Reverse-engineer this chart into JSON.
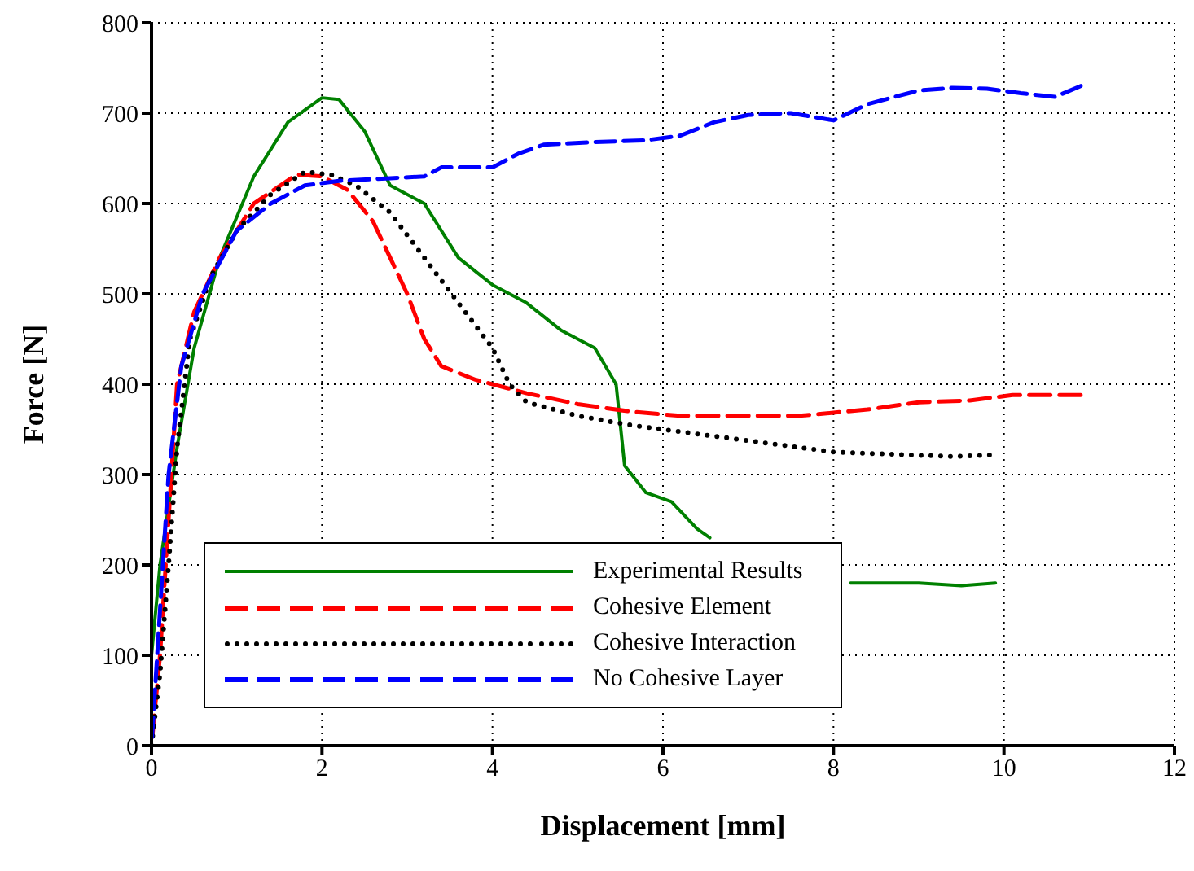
{
  "chart_data": {
    "type": "line",
    "xlabel": "Displacement [mm]",
    "ylabel": "Force [N]",
    "xlim": [
      0,
      12
    ],
    "xticks": [
      0,
      2,
      4,
      6,
      8,
      10,
      12
    ],
    "ylim": [
      0,
      800
    ],
    "yticks": [
      0,
      100,
      200,
      300,
      400,
      500,
      600,
      700,
      800
    ],
    "grid": true,
    "legend": "bottom left",
    "marker": "none",
    "series": [
      {
        "name": "Experimental Results",
        "color": "#008000",
        "line_style": "solid",
        "x": [
          0,
          0.1,
          0.3,
          0.5,
          0.8,
          1.2,
          1.6,
          2.0,
          2.2,
          2.5,
          2.8,
          3.2,
          3.6,
          4.0,
          4.4,
          4.8,
          5.2,
          5.45,
          5.55,
          5.8,
          6.1,
          6.4,
          6.55,
          7.3,
          8.2,
          8.5,
          9.0,
          9.5,
          9.9
        ],
        "values": [
          100,
          200,
          330,
          440,
          540,
          630,
          690,
          717,
          715,
          680,
          620,
          600,
          540,
          510,
          490,
          460,
          440,
          400,
          310,
          280,
          270,
          240,
          230,
          null,
          180,
          180,
          180,
          177,
          180
        ]
      },
      {
        "name": "Cohesive Element",
        "color": "#ff0000",
        "line_style": "dashed",
        "x": [
          0,
          0.1,
          0.2,
          0.3,
          0.5,
          0.8,
          1.2,
          1.7,
          2.0,
          2.3,
          2.6,
          3.0,
          3.2,
          3.4,
          3.8,
          4.4,
          5.0,
          5.6,
          6.2,
          7.0,
          7.6,
          8.4,
          9.0,
          9.6,
          10.1,
          10.9
        ],
        "values": [
          0,
          100,
          250,
          400,
          480,
          540,
          600,
          632,
          630,
          615,
          580,
          500,
          450,
          420,
          405,
          390,
          378,
          370,
          365,
          365,
          365,
          372,
          380,
          382,
          388,
          388
        ]
      },
      {
        "name": "Cohesive Interaction",
        "color": "#000000",
        "line_style": "dotted",
        "x": [
          0,
          0.1,
          0.2,
          0.3,
          0.45,
          0.7,
          1.0,
          1.4,
          1.8,
          2.1,
          2.4,
          2.8,
          3.2,
          3.6,
          4.0,
          4.2,
          4.4,
          5.0,
          5.6,
          6.4,
          7.2,
          8.0,
          8.8,
          9.4,
          9.9
        ],
        "values": [
          0,
          80,
          200,
          330,
          450,
          520,
          570,
          610,
          635,
          632,
          620,
          590,
          540,
          490,
          440,
          400,
          380,
          365,
          355,
          345,
          335,
          325,
          322,
          320,
          322
        ]
      },
      {
        "name": "No Cohesive Layer",
        "color": "#0000ff",
        "line_style": "dashed",
        "x": [
          0,
          0.1,
          0.2,
          0.35,
          0.6,
          1.0,
          1.4,
          1.8,
          2.2,
          2.8,
          3.2,
          3.4,
          4.0,
          4.3,
          4.6,
          5.2,
          5.8,
          6.2,
          6.6,
          7.0,
          7.5,
          8.0,
          8.4,
          9.0,
          9.4,
          9.8,
          10.2,
          10.6,
          10.9
        ],
        "values": [
          0,
          150,
          300,
          420,
          500,
          570,
          600,
          620,
          625,
          628,
          630,
          640,
          640,
          655,
          665,
          668,
          670,
          675,
          690,
          698,
          700,
          692,
          710,
          725,
          728,
          727,
          722,
          718,
          730
        ]
      }
    ]
  }
}
